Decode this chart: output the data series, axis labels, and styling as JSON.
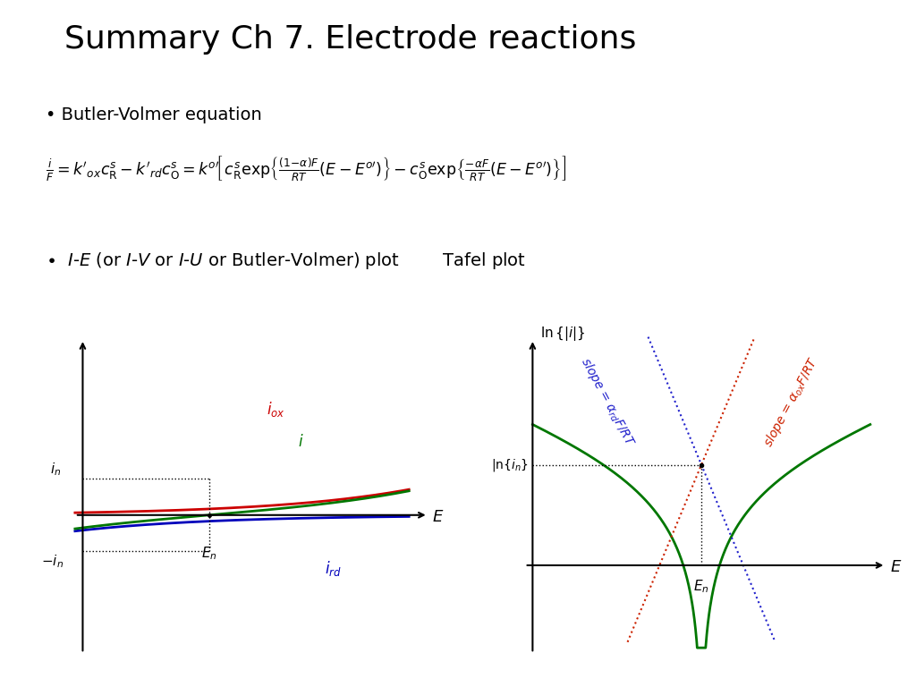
{
  "title": "Summary Ch 7. Electrode reactions",
  "bg_color": "#ffffff",
  "text_color": "#000000",
  "red_color": "#cc0000",
  "blue_color": "#0000bb",
  "green_color": "#007700",
  "slope_blue_color": "#2222cc",
  "slope_red_color": "#cc2200"
}
